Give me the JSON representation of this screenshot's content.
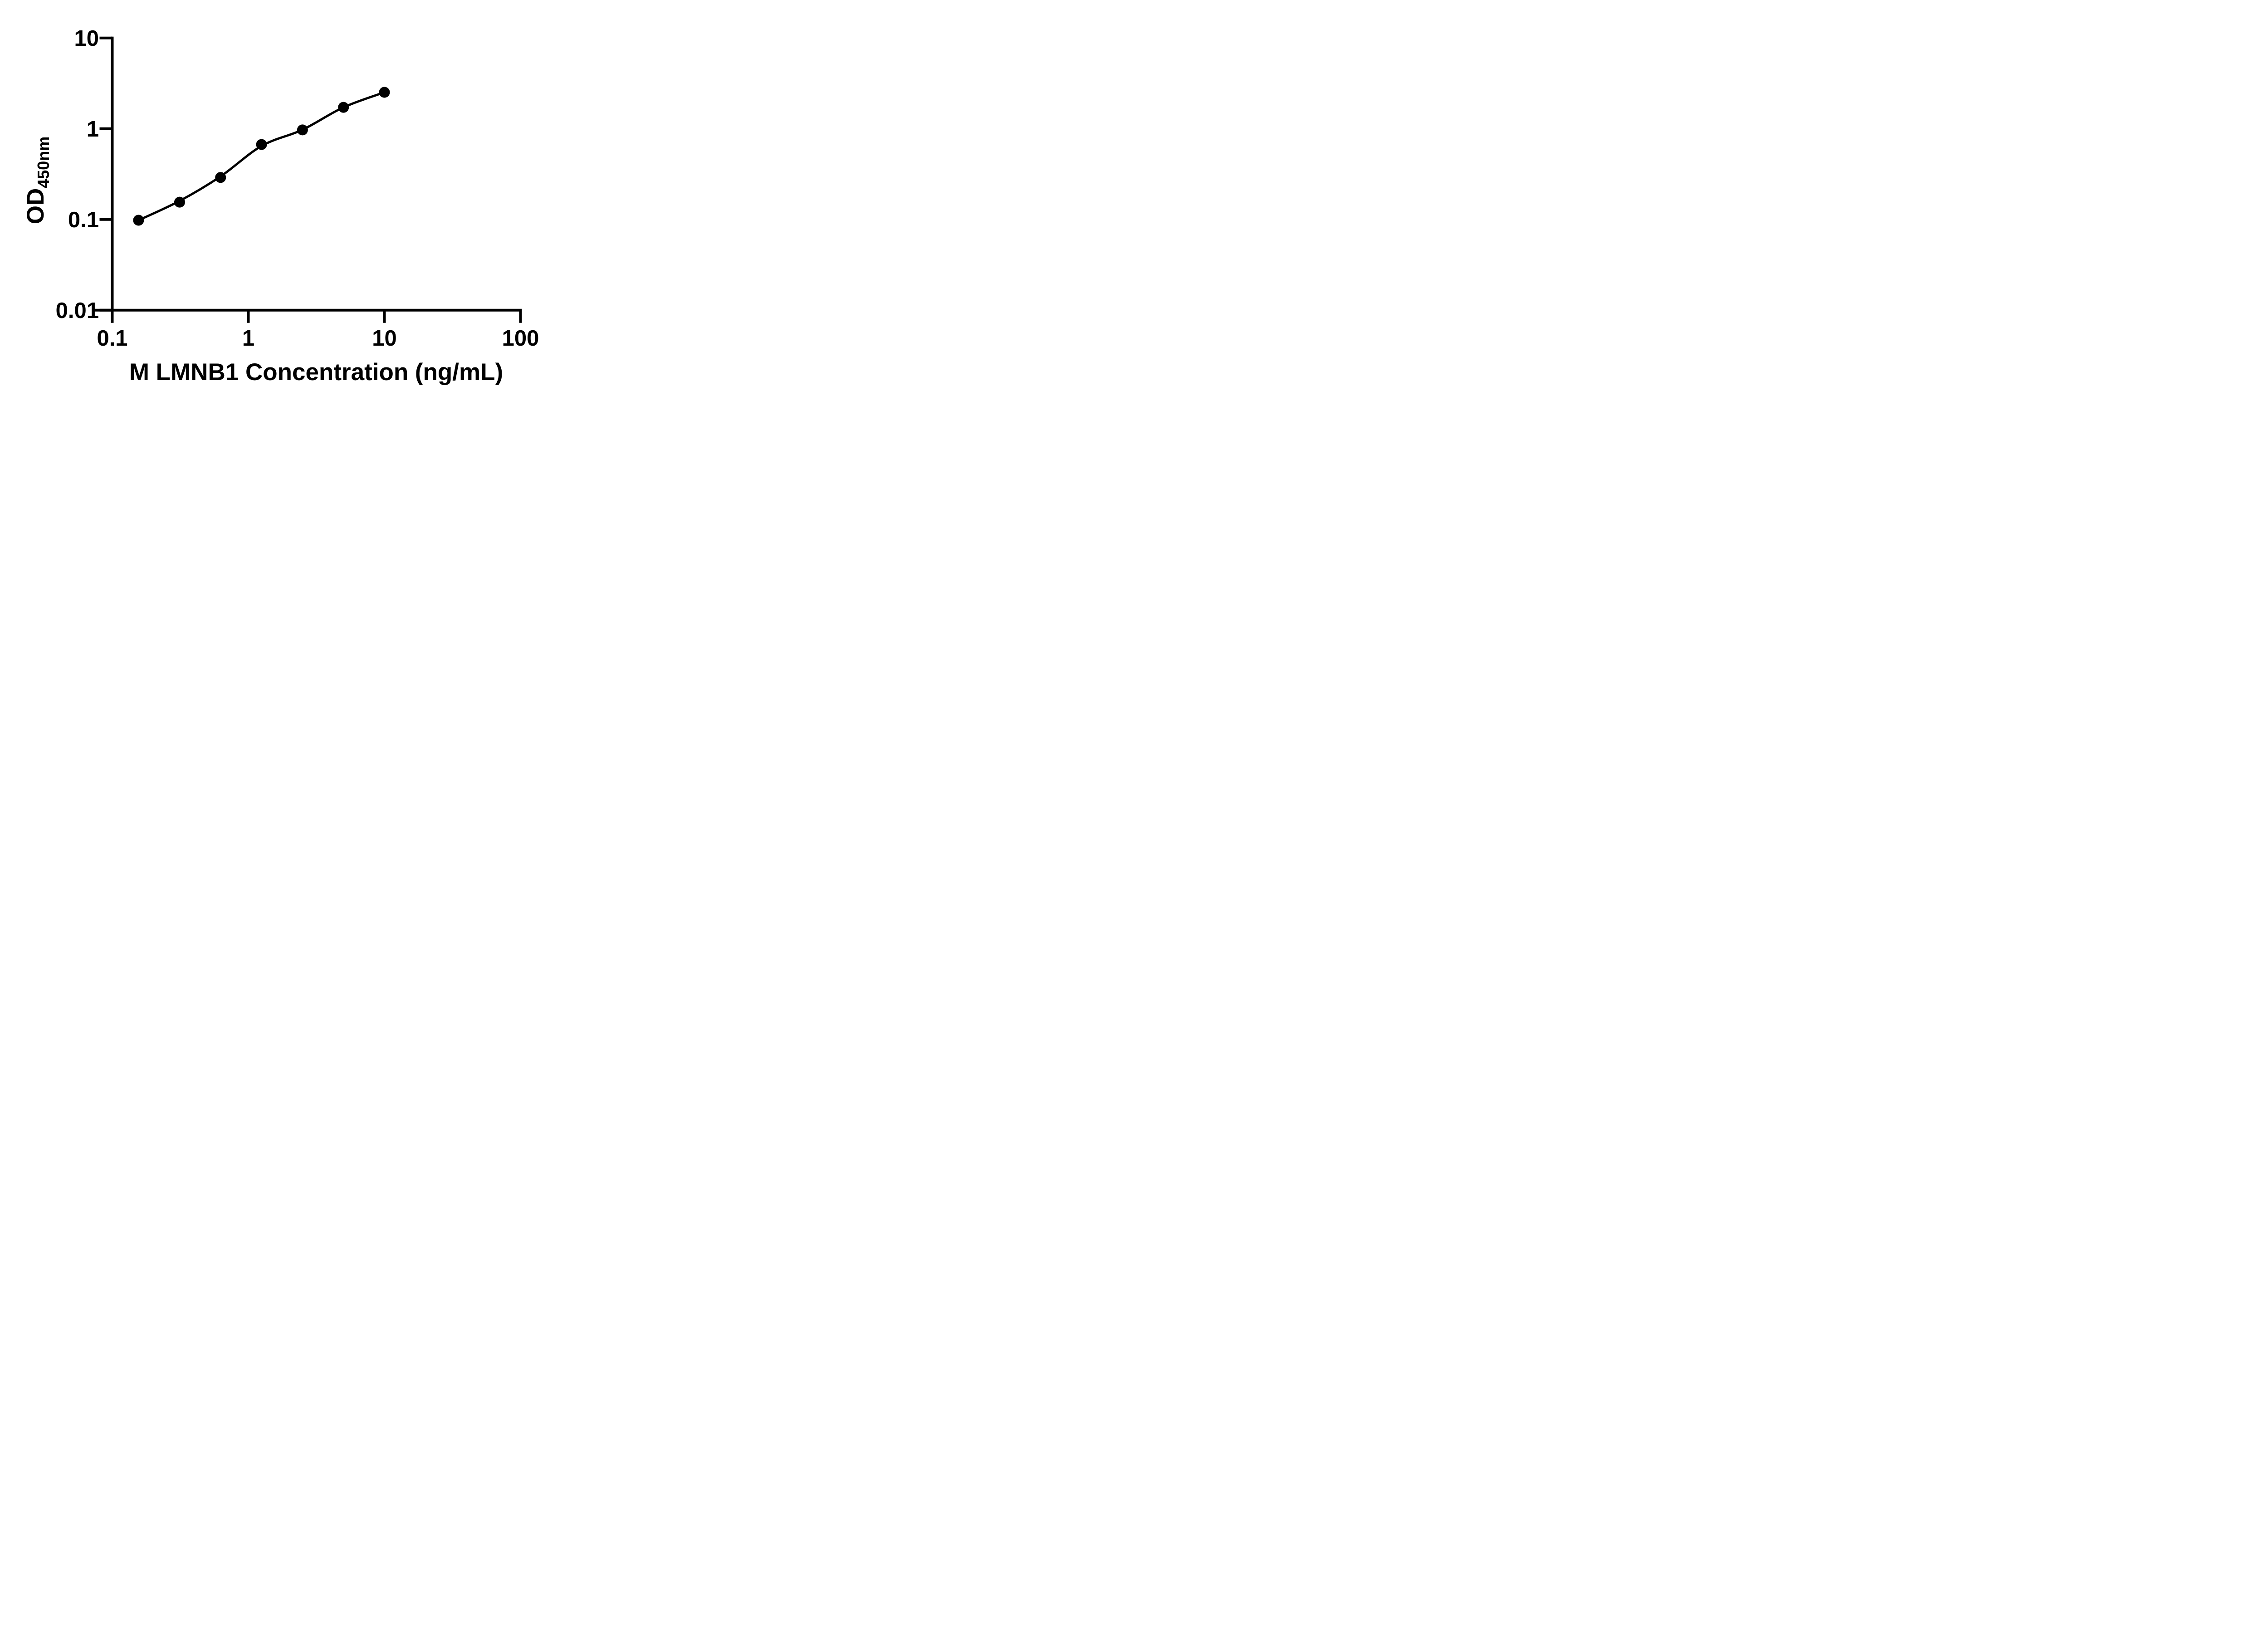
{
  "chart_data": {
    "type": "scatter",
    "title": "",
    "xlabel": "M LMNB1 Concentration (ng/mL)",
    "ylabel_main": "OD",
    "ylabel_sub": "450nm",
    "x_scale": "log10",
    "y_scale": "log10",
    "xlim": [
      0.1,
      100
    ],
    "ylim": [
      0.01,
      10
    ],
    "grid": false,
    "legend": "none",
    "x_ticks": [
      {
        "value": 0.1,
        "label": "0.1"
      },
      {
        "value": 1,
        "label": "1"
      },
      {
        "value": 10,
        "label": "10"
      },
      {
        "value": 100,
        "label": "100"
      }
    ],
    "y_ticks": [
      {
        "value": 10,
        "label": "10"
      },
      {
        "value": 1,
        "label": "1"
      },
      {
        "value": 0.1,
        "label": "0.1"
      },
      {
        "value": 0.01,
        "label": "0.01"
      }
    ],
    "points": [
      {
        "conc": 0.156,
        "od": 0.098
      },
      {
        "conc": 0.3125,
        "od": 0.155
      },
      {
        "conc": 0.625,
        "od": 0.29
      },
      {
        "conc": 1.25,
        "od": 0.67
      },
      {
        "conc": 2.5,
        "od": 0.97
      },
      {
        "conc": 5,
        "od": 1.72
      },
      {
        "conc": 10,
        "od": 2.52
      }
    ],
    "fit_curve": [
      {
        "conc": 0.156,
        "od": 0.098
      },
      {
        "conc": 0.3125,
        "od": 0.16
      },
      {
        "conc": 0.625,
        "od": 0.298
      },
      {
        "conc": 1.25,
        "od": 0.645
      },
      {
        "conc": 2.5,
        "od": 0.975
      },
      {
        "conc": 5,
        "od": 1.72
      },
      {
        "conc": 10,
        "od": 2.52
      }
    ],
    "marker_color": "#000000",
    "line_color": "#000000",
    "axis_color": "#000000",
    "background_color": "#ffffff"
  }
}
